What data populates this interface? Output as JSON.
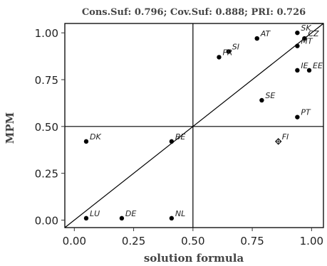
{
  "chart_data": {
    "type": "scatter",
    "title": "Cons.Suf: 0.796; Cov.Suf: 0.888; PRI: 0.726",
    "xlabel": "solution  formula",
    "ylabel": "MPM",
    "xlim": [
      -0.04,
      1.05
    ],
    "ylim": [
      -0.04,
      1.05
    ],
    "x_ticks": [
      0.0,
      0.25,
      0.5,
      0.75,
      1.0
    ],
    "x_tick_labels": [
      "0.00",
      "0.25",
      "0.50",
      "0.75",
      "1.00"
    ],
    "y_ticks": [
      0.0,
      0.25,
      0.5,
      0.75,
      1.0
    ],
    "y_tick_labels": [
      "0.00",
      "0.25",
      "0.50",
      "0.75",
      "1.00"
    ],
    "reference_lines": {
      "vertical_x": 0.5,
      "horizontal_y": 0.5,
      "diagonal": true
    },
    "grid": false,
    "points": [
      {
        "label": "SK",
        "x": 0.94,
        "y": 1.0,
        "marker": "dot"
      },
      {
        "label": "CZ",
        "x": 0.97,
        "y": 0.97,
        "marker": "dot"
      },
      {
        "label": "MT",
        "x": 0.94,
        "y": 0.93,
        "marker": "dot"
      },
      {
        "label": "AT",
        "x": 0.77,
        "y": 0.97,
        "marker": "dot"
      },
      {
        "label": "SI",
        "x": 0.65,
        "y": 0.9,
        "marker": "dot"
      },
      {
        "label": "FR",
        "x": 0.61,
        "y": 0.87,
        "marker": "dot"
      },
      {
        "label": "IE",
        "x": 0.94,
        "y": 0.8,
        "marker": "dot"
      },
      {
        "label": "EE",
        "x": 0.99,
        "y": 0.8,
        "marker": "dot"
      },
      {
        "label": "SE",
        "x": 0.79,
        "y": 0.64,
        "marker": "dot"
      },
      {
        "label": "PT",
        "x": 0.94,
        "y": 0.55,
        "marker": "dot"
      },
      {
        "label": "FI",
        "x": 0.86,
        "y": 0.42,
        "marker": "diamond"
      },
      {
        "label": "DK",
        "x": 0.05,
        "y": 0.42,
        "marker": "dot"
      },
      {
        "label": "BE",
        "x": 0.41,
        "y": 0.42,
        "marker": "dot"
      },
      {
        "label": "LU",
        "x": 0.05,
        "y": 0.01,
        "marker": "dot"
      },
      {
        "label": "DE",
        "x": 0.2,
        "y": 0.01,
        "marker": "dot"
      },
      {
        "label": "NL",
        "x": 0.41,
        "y": 0.01,
        "marker": "dot"
      }
    ]
  }
}
